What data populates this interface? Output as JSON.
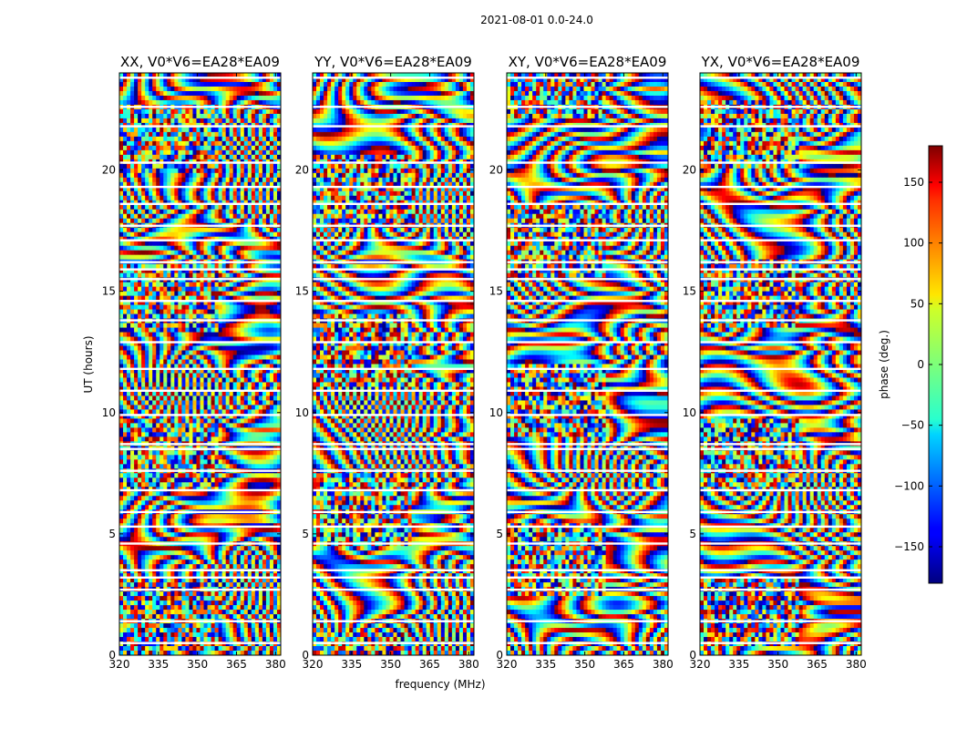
{
  "chart_data": {
    "type": "heatmap",
    "suptitle": "2021-08-01 0.0-24.0",
    "xlabel": "frequency (MHz)",
    "ylabel": "UT (hours)",
    "xlim": [
      320,
      382
    ],
    "ylim": [
      0,
      24
    ],
    "xticks": [
      320,
      335,
      350,
      365,
      380
    ],
    "yticks": [
      0,
      5,
      10,
      15,
      20
    ],
    "panels": [
      {
        "title": "XX, V0*V6=EA28*EA09",
        "polarization": "XX"
      },
      {
        "title": "YY, V0*V6=EA28*EA09",
        "polarization": "YY"
      },
      {
        "title": "XY, V0*V6=EA28*EA09",
        "polarization": "XY"
      },
      {
        "title": "YX, V0*V6=EA28*EA09",
        "polarization": "YX"
      }
    ],
    "colorbar": {
      "label": "phase (deg.)",
      "range": [
        -180,
        180
      ],
      "ticks": [
        150,
        100,
        50,
        0,
        -50,
        -100,
        -150
      ],
      "tick_labels": [
        "150",
        "100",
        "50",
        "0",
        "−50",
        "−100",
        "−150"
      ],
      "colormap": "jet"
    },
    "flagged_time_gaps_hours": [
      23.8,
      22.6,
      21.8,
      20.3,
      19.3,
      18.6,
      17.7,
      17.1,
      16.2,
      15.9,
      15.5,
      14.6,
      13.8,
      12.9,
      11.8,
      10.9,
      9.9,
      8.7,
      8.5,
      7.6,
      6.8,
      5.9,
      5.3,
      4.6,
      3.5,
      3.2,
      2.7,
      1.4,
      0.5
    ]
  }
}
